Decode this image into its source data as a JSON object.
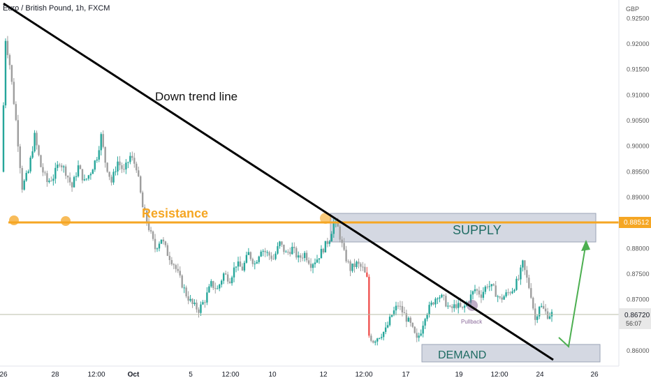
{
  "header": {
    "title": "Euro / British Pound, 1h, FXCM",
    "currency": "GBP"
  },
  "colors": {
    "bull": "#26a69a",
    "bear": "#9e9e9e",
    "bear_red": "#ef5350",
    "resistance": "#f5a623",
    "trendline": "#000000",
    "zone": "#c5cbd8",
    "arrow": "#4caf50",
    "price_line": "#b8bca8"
  },
  "chart_data": {
    "type": "candlestick",
    "title": "Euro / British Pound, 1h, FXCM",
    "y_axis_label": "GBP",
    "ylim": [
      0.8575,
      0.926
    ],
    "y_ticks": [
      "0.92500",
      "0.92000",
      "0.91500",
      "0.91000",
      "0.90500",
      "0.90000",
      "0.89500",
      "0.89000",
      "0.88000",
      "0.87500",
      "0.87000",
      "0.86000"
    ],
    "x_ticks": [
      "26",
      "28",
      "12:00",
      "Oct",
      "5",
      "12:00",
      "10",
      "12",
      "12:00",
      "17",
      "19",
      "12:00",
      "24",
      "26"
    ],
    "current_price": "0.86720",
    "current_price_countdown": "56:07",
    "resistance_level": "0.88512",
    "price_path": [
      [
        0,
        0.895
      ],
      [
        2,
        0.921
      ],
      [
        4,
        0.916
      ],
      [
        7,
        0.905
      ],
      [
        10,
        0.892
      ],
      [
        13,
        0.895
      ],
      [
        16,
        0.902
      ],
      [
        19,
        0.896
      ],
      [
        22,
        0.893
      ],
      [
        25,
        0.894
      ],
      [
        28,
        0.897
      ],
      [
        31,
        0.895
      ],
      [
        34,
        0.892
      ],
      [
        37,
        0.896
      ],
      [
        40,
        0.893
      ],
      [
        43,
        0.895
      ],
      [
        46,
        0.898
      ],
      [
        48,
        0.902
      ],
      [
        50,
        0.897
      ],
      [
        53,
        0.893
      ],
      [
        56,
        0.897
      ],
      [
        59,
        0.895
      ],
      [
        62,
        0.898
      ],
      [
        65,
        0.896
      ],
      [
        68,
        0.888
      ],
      [
        71,
        0.884
      ],
      [
        74,
        0.88
      ],
      [
        77,
        0.882
      ],
      [
        80,
        0.879
      ],
      [
        83,
        0.877
      ],
      [
        86,
        0.874
      ],
      [
        89,
        0.871
      ],
      [
        92,
        0.869
      ],
      [
        95,
        0.868
      ],
      [
        98,
        0.87
      ],
      [
        101,
        0.873
      ],
      [
        104,
        0.872
      ],
      [
        107,
        0.875
      ],
      [
        110,
        0.874
      ],
      [
        113,
        0.877
      ],
      [
        116,
        0.876
      ],
      [
        119,
        0.879
      ],
      [
        122,
        0.877
      ],
      [
        125,
        0.88
      ],
      [
        128,
        0.879
      ],
      [
        131,
        0.878
      ],
      [
        134,
        0.881
      ],
      [
        137,
        0.879
      ],
      [
        140,
        0.88
      ],
      [
        143,
        0.878
      ],
      [
        146,
        0.879
      ],
      [
        149,
        0.877
      ],
      [
        152,
        0.878
      ],
      [
        155,
        0.88
      ],
      [
        158,
        0.882
      ],
      [
        160,
        0.885
      ],
      [
        162,
        0.884
      ],
      [
        165,
        0.879
      ],
      [
        168,
        0.876
      ],
      [
        171,
        0.877
      ],
      [
        174,
        0.876
      ],
      [
        176,
        0.874
      ],
      [
        177,
        0.863
      ],
      [
        179,
        0.862
      ],
      [
        182,
        0.863
      ],
      [
        185,
        0.864
      ],
      [
        188,
        0.867
      ],
      [
        191,
        0.869
      ],
      [
        194,
        0.867
      ],
      [
        197,
        0.865
      ],
      [
        200,
        0.862
      ],
      [
        202,
        0.864
      ],
      [
        204,
        0.867
      ],
      [
        207,
        0.869
      ],
      [
        210,
        0.871
      ],
      [
        213,
        0.87
      ],
      [
        216,
        0.868
      ],
      [
        219,
        0.869
      ],
      [
        222,
        0.868
      ],
      [
        225,
        0.87
      ],
      [
        228,
        0.872
      ],
      [
        231,
        0.871
      ],
      [
        234,
        0.873
      ],
      [
        237,
        0.872
      ],
      [
        240,
        0.87
      ],
      [
        243,
        0.871
      ],
      [
        246,
        0.872
      ],
      [
        249,
        0.874
      ],
      [
        251,
        0.877
      ],
      [
        253,
        0.874
      ],
      [
        255,
        0.871
      ],
      [
        257,
        0.866
      ],
      [
        259,
        0.869
      ],
      [
        261,
        0.868
      ],
      [
        263,
        0.867
      ],
      [
        265,
        0.8672
      ]
    ]
  },
  "annotations": {
    "trendline_label": "Down trend line",
    "resistance_label": "Resistance",
    "supply_label": "SUPPLY",
    "demand_label": "DEMAND",
    "pullback_label": "Pullback"
  }
}
